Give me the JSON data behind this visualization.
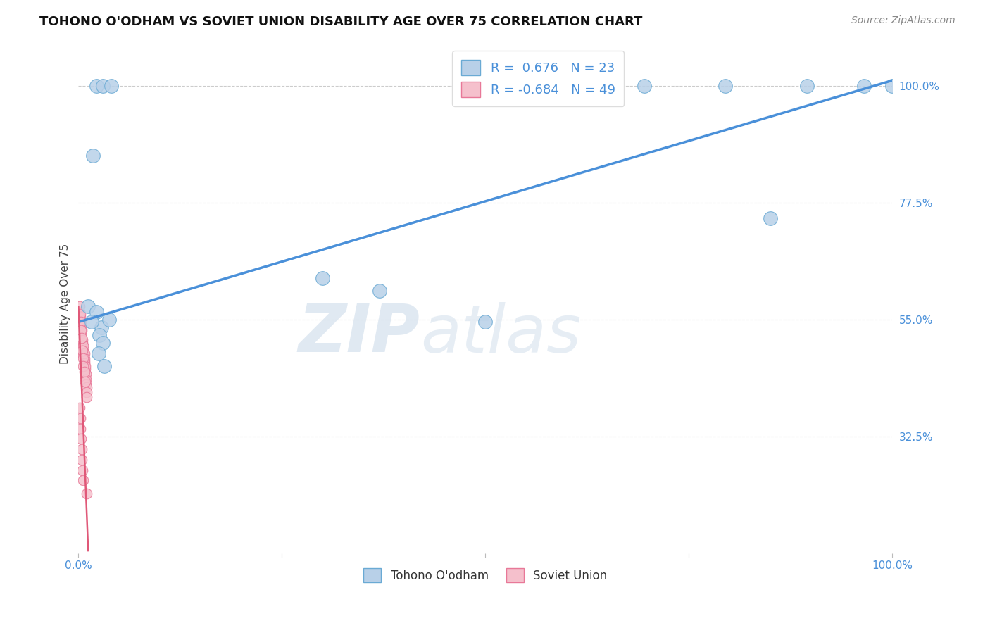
{
  "title": "TOHONO O'ODHAM VS SOVIET UNION DISABILITY AGE OVER 75 CORRELATION CHART",
  "source": "Source: ZipAtlas.com",
  "ylabel": "Disability Age Over 75",
  "xlim": [
    0.0,
    1.0
  ],
  "ylim": [
    0.1,
    1.06
  ],
  "y_ticks": [
    0.325,
    0.55,
    0.775,
    1.0
  ],
  "y_tick_labels": [
    "32.5%",
    "55.0%",
    "77.5%",
    "100.0%"
  ],
  "blue_color": "#b8d0e8",
  "blue_edge_color": "#6aaad4",
  "pink_color": "#f5c0cc",
  "pink_edge_color": "#e87898",
  "trend_blue": "#4a90d9",
  "trend_pink": "#e05878",
  "R_blue": 0.676,
  "N_blue": 23,
  "R_pink": -0.684,
  "N_pink": 49,
  "blue_trend_x0": 0.0,
  "blue_trend_y0": 0.545,
  "blue_trend_x1": 1.0,
  "blue_trend_y1": 1.01,
  "pink_trend_x0": 0.0,
  "pink_trend_y0": 0.575,
  "pink_trend_x1": 0.012,
  "pink_trend_y1": 0.105,
  "blue_pts_x": [
    0.022,
    0.03,
    0.04,
    0.018,
    0.6,
    0.695,
    0.795,
    0.895,
    0.965,
    1.0,
    0.012,
    0.022,
    0.028,
    0.038,
    0.016,
    0.026,
    0.03,
    0.85,
    0.3,
    0.37,
    0.5,
    0.025,
    0.032
  ],
  "blue_pts_y": [
    1.0,
    1.0,
    1.0,
    0.865,
    1.0,
    1.0,
    1.0,
    1.0,
    1.0,
    1.0,
    0.575,
    0.565,
    0.535,
    0.55,
    0.545,
    0.52,
    0.505,
    0.745,
    0.63,
    0.605,
    0.545,
    0.485,
    0.46
  ],
  "pink_pts_x": [
    0.001,
    0.001,
    0.002,
    0.002,
    0.002,
    0.003,
    0.003,
    0.003,
    0.004,
    0.004,
    0.004,
    0.005,
    0.005,
    0.005,
    0.006,
    0.006,
    0.006,
    0.007,
    0.007,
    0.007,
    0.007,
    0.008,
    0.008,
    0.008,
    0.009,
    0.009,
    0.009,
    0.01,
    0.01,
    0.01,
    0.001,
    0.002,
    0.003,
    0.003,
    0.004,
    0.005,
    0.006,
    0.006,
    0.007,
    0.008,
    0.001,
    0.002,
    0.002,
    0.003,
    0.004,
    0.004,
    0.005,
    0.006,
    0.01
  ],
  "pink_pts_y": [
    0.565,
    0.545,
    0.555,
    0.535,
    0.52,
    0.54,
    0.525,
    0.51,
    0.53,
    0.515,
    0.5,
    0.505,
    0.495,
    0.51,
    0.49,
    0.5,
    0.48,
    0.485,
    0.47,
    0.475,
    0.465,
    0.455,
    0.44,
    0.46,
    0.445,
    0.435,
    0.425,
    0.42,
    0.41,
    0.4,
    0.575,
    0.56,
    0.545,
    0.53,
    0.515,
    0.49,
    0.475,
    0.46,
    0.45,
    0.43,
    0.38,
    0.36,
    0.34,
    0.32,
    0.3,
    0.28,
    0.26,
    0.24,
    0.215
  ],
  "watermark_zip": "ZIP",
  "watermark_atlas": "atlas",
  "grid_color": "#cccccc",
  "background_color": "#ffffff"
}
